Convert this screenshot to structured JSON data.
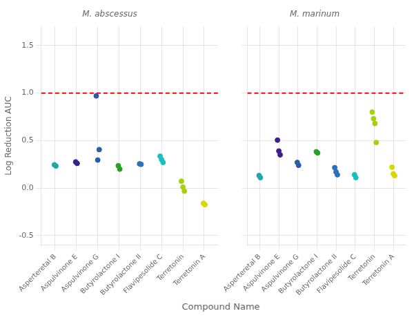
{
  "chart_data": [
    {
      "type": "scatter",
      "title": "M. abscessus",
      "ylabel": "Log Reduction AUC",
      "xlabel": "Compound Name",
      "categories": [
        "Asperteretal B",
        "Aspulvinone E",
        "Aspulvinone G",
        "Butyrolactone I",
        "Butyrolactone II",
        "Flavipesolide C",
        "Terretonin",
        "Terretonin A"
      ],
      "values": [
        [
          0.245,
          0.232
        ],
        [
          0.275,
          0.26
        ],
        [
          0.97,
          0.295,
          0.405
        ],
        [
          0.235,
          0.2
        ],
        [
          0.255,
          0.25
        ],
        [
          0.335,
          0.3,
          0.27
        ],
        [
          0.072,
          0.01,
          -0.032
        ],
        [
          -0.16,
          -0.175
        ]
      ],
      "colors": [
        "#1fa8a8",
        "#3d1f8a",
        "#2b5caa",
        "#28a028",
        "#2b70b8",
        "#18c0c0",
        "#a8d010",
        "#d8d800"
      ],
      "reference_line": {
        "y": 1.0,
        "color": "red",
        "line_style": "dashed"
      },
      "ylim": [
        -0.6,
        1.7
      ],
      "yticks": [
        -0.5,
        {
          "value": 0.0,
          "label": "0.0"
        },
        0.5,
        {
          "value": 1.0,
          "label": "1.0"
        },
        1.5
      ],
      "grid": true
    },
    {
      "type": "scatter",
      "title": "M. marinum",
      "categories": [
        "Asperteretal B",
        "Aspulvinone E",
        "Aspulvinone G",
        "Butyrolactone I",
        "Butyrolactone II",
        "Flavipesolide C",
        "Terretonin",
        "Terretonin A"
      ],
      "values": [
        [
          0.132,
          0.11
        ],
        [
          0.505,
          0.39,
          0.35
        ],
        [
          0.27,
          0.24
        ],
        [
          0.382,
          0.37
        ],
        [
          0.215,
          0.17,
          0.14
        ],
        [
          0.14,
          0.11
        ],
        [
          0.8,
          0.73,
          0.68,
          0.48
        ],
        [
          0.22,
          0.15,
          0.13
        ]
      ],
      "colors": [
        "#1fa8a8",
        "#3d1f8a",
        "#2b5caa",
        "#28a028",
        "#2b70b8",
        "#18c0c0",
        "#a8d010",
        "#d8d800"
      ],
      "reference_line": {
        "y": 1.0,
        "color": "red",
        "line_style": "dashed"
      },
      "ylim": [
        -0.6,
        1.7
      ],
      "yticks": [
        -0.5,
        {
          "value": 0.0,
          "label": "0.0"
        },
        0.5,
        {
          "value": 1.0,
          "label": "1.0"
        },
        1.5
      ],
      "grid": true,
      "tick_labels": "x"
    }
  ]
}
